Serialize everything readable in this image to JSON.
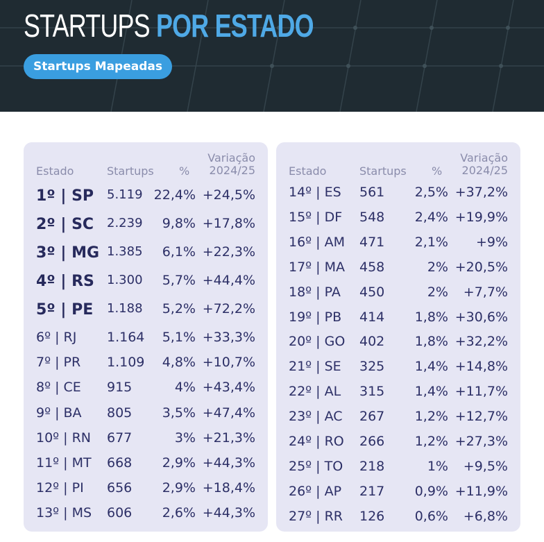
{
  "header": {
    "title_part1": "STARTUPS",
    "title_part2": "POR ESTADO",
    "badge": "Startups Mapeadas"
  },
  "columns": {
    "state": "Estado",
    "startups": "Startups",
    "pct": "%",
    "variation_line1": "Variação",
    "variation_line2": "2024/25"
  },
  "colors": {
    "header_bg": "#1f2b32",
    "accent": "#4fa9e6",
    "panel_bg": "#e6e6f4",
    "text": "#2c2f66"
  },
  "left_rows": [
    {
      "state": "1º | SP",
      "count": "5.119",
      "pct": "22,4%",
      "var": "+24,5%"
    },
    {
      "state": "2º | SC",
      "count": "2.239",
      "pct": "9,8%",
      "var": "+17,8%"
    },
    {
      "state": "3º | MG",
      "count": "1.385",
      "pct": "6,1%",
      "var": "+22,3%"
    },
    {
      "state": "4º | RS",
      "count": "1.300",
      "pct": "5,7%",
      "var": "+44,4%"
    },
    {
      "state": "5º | PE",
      "count": "1.188",
      "pct": "5,2%",
      "var": "+72,2%"
    },
    {
      "state": "6º | RJ",
      "count": "1.164",
      "pct": "5,1%",
      "var": "+33,3%"
    },
    {
      "state": "7º | PR",
      "count": "1.109",
      "pct": "4,8%",
      "var": "+10,7%"
    },
    {
      "state": "8º | CE",
      "count": "915",
      "pct": "4%",
      "var": "+43,4%"
    },
    {
      "state": "9º | BA",
      "count": "805",
      "pct": "3,5%",
      "var": "+47,4%"
    },
    {
      "state": "10º | RN",
      "count": "677",
      "pct": "3%",
      "var": "+21,3%"
    },
    {
      "state": "11º | MT",
      "count": "668",
      "pct": "2,9%",
      "var": "+44,3%"
    },
    {
      "state": "12º | PI",
      "count": "656",
      "pct": "2,9%",
      "var": "+18,4%"
    },
    {
      "state": "13º | MS",
      "count": "606",
      "pct": "2,6%",
      "var": "+44,3%"
    }
  ],
  "right_rows": [
    {
      "state": "14º | ES",
      "count": "561",
      "pct": "2,5%",
      "var": "+37,2%"
    },
    {
      "state": "15º | DF",
      "count": "548",
      "pct": "2,4%",
      "var": "+19,9%"
    },
    {
      "state": "16º | AM",
      "count": "471",
      "pct": "2,1%",
      "var": "+9%"
    },
    {
      "state": "17º | MA",
      "count": "458",
      "pct": "2%",
      "var": "+20,5%"
    },
    {
      "state": "18º | PA",
      "count": "450",
      "pct": "2%",
      "var": "+7,7%"
    },
    {
      "state": "19º | PB",
      "count": "414",
      "pct": "1,8%",
      "var": "+30,6%"
    },
    {
      "state": "20º | GO",
      "count": "402",
      "pct": "1,8%",
      "var": "+32,2%"
    },
    {
      "state": "21º | SE",
      "count": "325",
      "pct": "1,4%",
      "var": "+14,8%"
    },
    {
      "state": "22º | AL",
      "count": "315",
      "pct": "1,4%",
      "var": "+11,7%"
    },
    {
      "state": "23º | AC",
      "count": "267",
      "pct": "1,2%",
      "var": "+12,7%"
    },
    {
      "state": "24º | RO",
      "count": "266",
      "pct": "1,2%",
      "var": "+27,3%"
    },
    {
      "state": "25º | TO",
      "count": "218",
      "pct": "1%",
      "var": "+9,5%"
    },
    {
      "state": "26º | AP",
      "count": "217",
      "pct": "0,9%",
      "var": "+11,9%"
    },
    {
      "state": "27º | RR",
      "count": "126",
      "pct": "0,6%",
      "var": "+6,8%"
    }
  ]
}
